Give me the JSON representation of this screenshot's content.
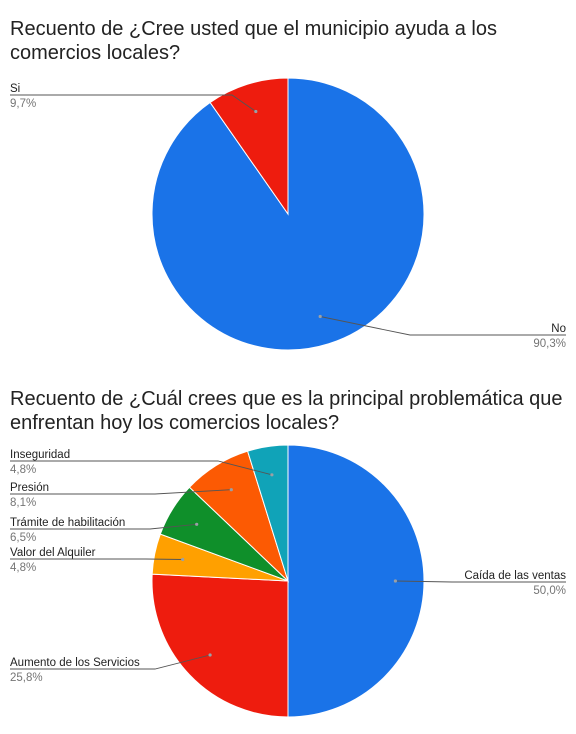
{
  "chart_data": [
    {
      "type": "pie",
      "title": "Recuento de ¿Cree usted que el municipio ayuda a los comercios locales?",
      "slices": [
        {
          "label": "No",
          "value": 90.3,
          "value_label": "90,3%",
          "color": "#1a73e8"
        },
        {
          "label": "Si",
          "value": 9.7,
          "value_label": "9,7%",
          "color": "#ee1c0e"
        }
      ],
      "legend": "labels with leader lines"
    },
    {
      "type": "pie",
      "title": "Recuento de ¿Cuál crees que es la principal problemática que enfrentan hoy los comercios locales?",
      "slices": [
        {
          "label": "Caída de las ventas",
          "value": 50.0,
          "value_label": "50,0%",
          "color": "#1a73e8"
        },
        {
          "label": "Aumento de los Servicios",
          "value": 25.8,
          "value_label": "25,8%",
          "color": "#ee1c0e"
        },
        {
          "label": "Valor del Alquiler",
          "value": 4.8,
          "value_label": "4,8%",
          "color": "#ffa000"
        },
        {
          "label": "Trámite de habilitación",
          "value": 6.5,
          "value_label": "6,5%",
          "color": "#0f8f2a"
        },
        {
          "label": "Presión",
          "value": 8.1,
          "value_label": "8,1%",
          "color": "#fc5a03"
        },
        {
          "label": "Inseguridad",
          "value": 4.8,
          "value_label": "4,8%",
          "color": "#10a3b8"
        }
      ],
      "legend": "labels with leader lines"
    }
  ]
}
